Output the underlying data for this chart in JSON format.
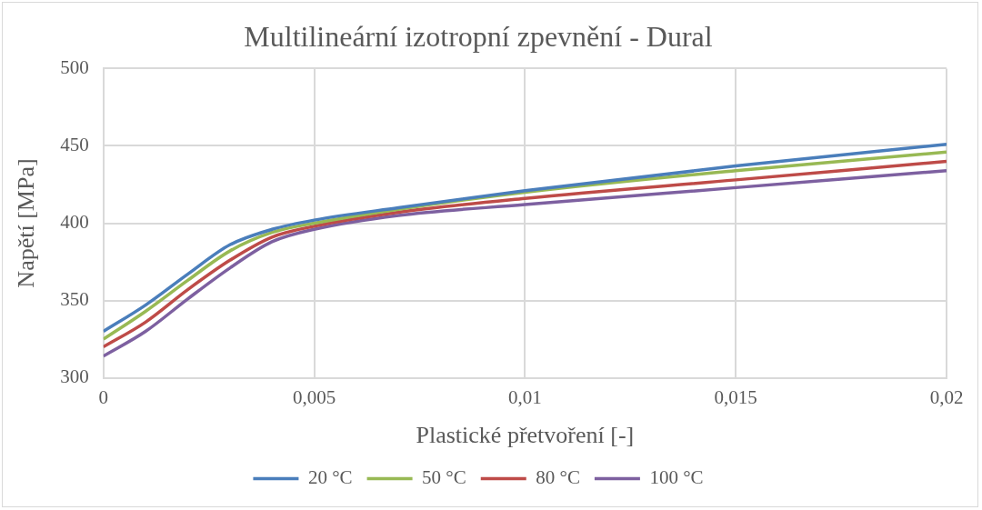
{
  "chart_data": {
    "type": "line",
    "title": "Multilineární izotropní zpevnění - Dural",
    "xlabel": "Plastické přetvoření [-]",
    "ylabel": "Napětí [MPa]",
    "x": [
      0,
      0.001,
      0.002,
      0.003,
      0.004,
      0.005,
      0.007,
      0.01,
      0.015,
      0.02
    ],
    "series": [
      {
        "name": "20 °C",
        "color": "#4a7ebb",
        "values": [
          330,
          347,
          367,
          386,
          396,
          402,
          410,
          421,
          437,
          451
        ]
      },
      {
        "name": "50 °C",
        "color": "#98b954",
        "values": [
          325,
          343,
          363,
          382,
          394,
          400,
          409,
          420,
          434,
          446
        ]
      },
      {
        "name": "80 °C",
        "color": "#be4b48",
        "values": [
          320,
          336,
          357,
          376,
          391,
          398,
          407,
          416,
          428,
          440
        ]
      },
      {
        "name": "100 °C",
        "color": "#7d60a0",
        "values": [
          314,
          330,
          351,
          371,
          388,
          396,
          405,
          412,
          423,
          434
        ]
      }
    ],
    "xlim": [
      0,
      0.02
    ],
    "xticks": [
      0,
      {
        "value": 0.005,
        "label": "0,005"
      },
      {
        "value": 0.01,
        "label": "0,01"
      },
      {
        "value": 0.015,
        "label": "0,015"
      },
      {
        "value": 0.02,
        "label": "0,02"
      }
    ],
    "ylim": [
      300,
      500
    ],
    "yticks": [
      300,
      350,
      400,
      450,
      500
    ],
    "grid": true,
    "legend": "bottom",
    "marker": "none",
    "line_style": "solid"
  }
}
